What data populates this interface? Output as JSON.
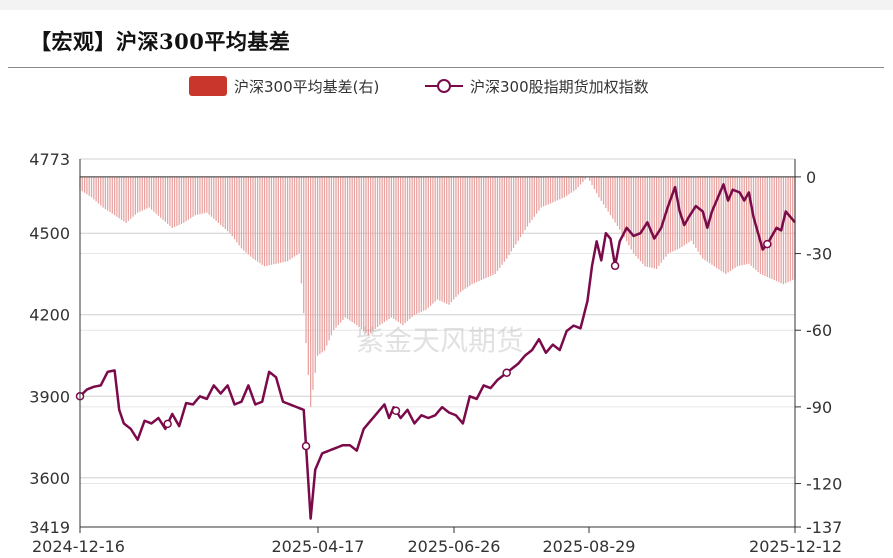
{
  "title": "【宏观】沪深300平均基差",
  "watermark": "紫金天风期货",
  "chart_data": {
    "type": "bar+line",
    "legend": [
      {
        "label": "沪深300平均基差(右)",
        "kind": "bar",
        "color": "#c9372c"
      },
      {
        "label": "沪深300股指期货加权指数",
        "kind": "line",
        "color": "#7b0a4a"
      }
    ],
    "legend_position": "top-center",
    "colors": {
      "bar": "#e8a2a0",
      "line": "#7b0a4a",
      "grid": "#d0d0d0",
      "axis": "#333333"
    },
    "left_axis": {
      "ticks": [
        3419,
        3600,
        3900,
        4200,
        4500,
        4773
      ],
      "range": [
        3419,
        4773
      ]
    },
    "right_axis": {
      "ticks": [
        0,
        -30,
        -60,
        -90,
        -120,
        -137
      ],
      "range": [
        -137,
        7
      ]
    },
    "x_ticks": [
      "2024-12-16",
      "2025-04-17",
      "2025-06-26",
      "2025-08-29",
      "2025-12-12"
    ],
    "index_keypoints": [
      [
        0,
        3900
      ],
      [
        3,
        3925
      ],
      [
        6,
        3935
      ],
      [
        9,
        3940
      ],
      [
        12,
        3990
      ],
      [
        15,
        3995
      ],
      [
        17,
        3850
      ],
      [
        19,
        3800
      ],
      [
        22,
        3780
      ],
      [
        25,
        3740
      ],
      [
        28,
        3810
      ],
      [
        31,
        3800
      ],
      [
        34,
        3820
      ],
      [
        37,
        3780
      ],
      [
        40,
        3835
      ],
      [
        43,
        3790
      ],
      [
        46,
        3875
      ],
      [
        49,
        3870
      ],
      [
        52,
        3900
      ],
      [
        55,
        3890
      ],
      [
        58,
        3940
      ],
      [
        61,
        3910
      ],
      [
        64,
        3940
      ],
      [
        67,
        3870
      ],
      [
        70,
        3880
      ],
      [
        73,
        3940
      ],
      [
        76,
        3870
      ],
      [
        79,
        3880
      ],
      [
        82,
        3990
      ],
      [
        85,
        3970
      ],
      [
        88,
        3880
      ],
      [
        91,
        3870
      ],
      [
        94,
        3860
      ],
      [
        97,
        3850
      ],
      [
        100,
        3450
      ],
      [
        102,
        3630
      ],
      [
        105,
        3690
      ],
      [
        108,
        3700
      ],
      [
        111,
        3710
      ],
      [
        114,
        3720
      ],
      [
        117,
        3720
      ],
      [
        120,
        3700
      ],
      [
        123,
        3780
      ],
      [
        126,
        3810
      ],
      [
        129,
        3840
      ],
      [
        132,
        3870
      ],
      [
        134,
        3820
      ],
      [
        136,
        3860
      ],
      [
        139,
        3820
      ],
      [
        142,
        3850
      ],
      [
        145,
        3800
      ],
      [
        148,
        3830
      ],
      [
        151,
        3820
      ],
      [
        154,
        3830
      ],
      [
        157,
        3860
      ],
      [
        160,
        3840
      ],
      [
        163,
        3830
      ],
      [
        166,
        3800
      ],
      [
        169,
        3900
      ],
      [
        172,
        3890
      ],
      [
        175,
        3940
      ],
      [
        178,
        3930
      ],
      [
        181,
        3960
      ],
      [
        184,
        3980
      ],
      [
        187,
        4000
      ],
      [
        190,
        4020
      ],
      [
        193,
        4050
      ],
      [
        196,
        4070
      ],
      [
        199,
        4110
      ],
      [
        202,
        4060
      ],
      [
        205,
        4090
      ],
      [
        208,
        4070
      ],
      [
        211,
        4140
      ],
      [
        214,
        4160
      ],
      [
        217,
        4150
      ],
      [
        220,
        4250
      ],
      [
        222,
        4380
      ],
      [
        224,
        4470
      ],
      [
        226,
        4400
      ],
      [
        228,
        4500
      ],
      [
        230,
        4480
      ],
      [
        232,
        4380
      ],
      [
        234,
        4470
      ],
      [
        237,
        4520
      ],
      [
        240,
        4490
      ],
      [
        243,
        4500
      ],
      [
        246,
        4540
      ],
      [
        249,
        4480
      ],
      [
        252,
        4520
      ],
      [
        255,
        4600
      ],
      [
        258,
        4670
      ],
      [
        260,
        4580
      ],
      [
        262,
        4530
      ],
      [
        264,
        4560
      ],
      [
        267,
        4600
      ],
      [
        270,
        4580
      ],
      [
        272,
        4520
      ],
      [
        274,
        4580
      ],
      [
        277,
        4640
      ],
      [
        279,
        4680
      ],
      [
        281,
        4620
      ],
      [
        283,
        4660
      ],
      [
        286,
        4650
      ],
      [
        288,
        4620
      ],
      [
        290,
        4650
      ],
      [
        292,
        4560
      ],
      [
        294,
        4500
      ],
      [
        296,
        4440
      ],
      [
        298,
        4460
      ],
      [
        300,
        4490
      ],
      [
        302,
        4520
      ],
      [
        304,
        4510
      ],
      [
        306,
        4580
      ],
      [
        308,
        4560
      ],
      [
        310,
        4540
      ]
    ],
    "index_markers": [
      0,
      38,
      98,
      137,
      185,
      232,
      298,
      355
    ],
    "basis_keypoints": [
      [
        0,
        -5
      ],
      [
        5,
        -8
      ],
      [
        10,
        -12
      ],
      [
        15,
        -15
      ],
      [
        20,
        -18
      ],
      [
        25,
        -14
      ],
      [
        30,
        -12
      ],
      [
        35,
        -16
      ],
      [
        40,
        -20
      ],
      [
        45,
        -18
      ],
      [
        50,
        -15
      ],
      [
        55,
        -14
      ],
      [
        60,
        -18
      ],
      [
        65,
        -22
      ],
      [
        70,
        -28
      ],
      [
        75,
        -32
      ],
      [
        80,
        -35
      ],
      [
        85,
        -34
      ],
      [
        90,
        -33
      ],
      [
        95,
        -30
      ],
      [
        98,
        -65
      ],
      [
        100,
        -90
      ],
      [
        103,
        -70
      ],
      [
        106,
        -68
      ],
      [
        110,
        -60
      ],
      [
        115,
        -55
      ],
      [
        120,
        -58
      ],
      [
        125,
        -62
      ],
      [
        130,
        -58
      ],
      [
        135,
        -55
      ],
      [
        140,
        -58
      ],
      [
        145,
        -54
      ],
      [
        150,
        -52
      ],
      [
        155,
        -48
      ],
      [
        160,
        -50
      ],
      [
        165,
        -45
      ],
      [
        170,
        -42
      ],
      [
        175,
        -40
      ],
      [
        180,
        -38
      ],
      [
        185,
        -32
      ],
      [
        190,
        -25
      ],
      [
        195,
        -18
      ],
      [
        200,
        -12
      ],
      [
        205,
        -10
      ],
      [
        210,
        -8
      ],
      [
        215,
        -5
      ],
      [
        220,
        0
      ],
      [
        225,
        -8
      ],
      [
        230,
        -15
      ],
      [
        235,
        -22
      ],
      [
        240,
        -30
      ],
      [
        245,
        -35
      ],
      [
        250,
        -36
      ],
      [
        255,
        -30
      ],
      [
        260,
        -28
      ],
      [
        265,
        -25
      ],
      [
        270,
        -32
      ],
      [
        275,
        -35
      ],
      [
        280,
        -38
      ],
      [
        285,
        -35
      ],
      [
        290,
        -34
      ],
      [
        295,
        -38
      ],
      [
        300,
        -40
      ],
      [
        305,
        -42
      ],
      [
        310,
        -40
      ]
    ],
    "series_length": 311
  }
}
